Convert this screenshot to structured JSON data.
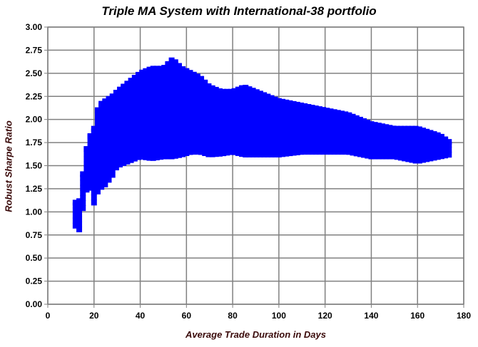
{
  "chart_data": {
    "type": "scatter",
    "title": "Triple MA System  with International-38 portfolio",
    "xlabel": "Average Trade Duration in Days",
    "ylabel": "Robust Sharpe Ratio",
    "xlim": [
      0,
      180
    ],
    "ylim": [
      0,
      3
    ],
    "xticks": [
      "0",
      "20",
      "40",
      "60",
      "80",
      "100",
      "120",
      "140",
      "160",
      "180"
    ],
    "yticks": [
      "0.00",
      "0.25",
      "0.50",
      "0.75",
      "1.00",
      "1.25",
      "1.50",
      "1.75",
      "2.00",
      "2.25",
      "2.50",
      "2.75",
      "3.00"
    ],
    "grid": true,
    "marker": "square",
    "color": "#0000ff",
    "point_cloud_envelope": {
      "x": [
        12,
        14,
        16,
        18,
        20,
        22,
        25,
        28,
        30,
        35,
        40,
        45,
        50,
        54,
        58,
        62,
        66,
        70,
        75,
        80,
        85,
        90,
        95,
        100,
        110,
        120,
        130,
        140,
        150,
        160,
        170,
        174
      ],
      "y_low": [
        0.85,
        0.8,
        1.2,
        1.3,
        1.1,
        1.25,
        1.3,
        1.4,
        1.5,
        1.55,
        1.6,
        1.58,
        1.6,
        1.6,
        1.62,
        1.65,
        1.65,
        1.62,
        1.63,
        1.65,
        1.62,
        1.62,
        1.62,
        1.62,
        1.65,
        1.65,
        1.65,
        1.6,
        1.6,
        1.55,
        1.6,
        1.62
      ],
      "y_high": [
        1.1,
        1.12,
        1.6,
        1.8,
        1.9,
        2.15,
        2.2,
        2.25,
        2.3,
        2.4,
        2.5,
        2.55,
        2.55,
        2.65,
        2.55,
        2.5,
        2.45,
        2.35,
        2.3,
        2.3,
        2.35,
        2.3,
        2.25,
        2.2,
        2.15,
        2.1,
        2.05,
        1.95,
        1.9,
        1.9,
        1.82,
        1.75
      ]
    }
  }
}
